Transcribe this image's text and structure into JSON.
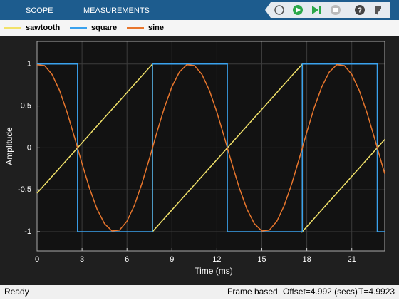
{
  "toolbar": {
    "tabs": [
      "SCOPE",
      "MEASUREMENTS"
    ]
  },
  "status": {
    "left": "Ready",
    "mode": "Frame based",
    "offset": "Offset=4.992 (secs)",
    "time": "T=4.9923"
  },
  "chart_data": {
    "type": "line",
    "xlabel": "Time (ms)",
    "ylabel": "Amplitude",
    "xlim": [
      0,
      23.2
    ],
    "xticks": [
      0,
      3,
      6,
      9,
      12,
      15,
      18,
      21
    ],
    "ylim": [
      -1.23,
      1.27
    ],
    "yticks": [
      -1,
      -0.5,
      0,
      0.5,
      1
    ],
    "grid": true,
    "series": [
      {
        "name": "sawtooth",
        "color": "#f2e26a",
        "x": [
          0,
          7.7,
          7.7,
          17.7,
          17.7,
          23.2
        ],
        "values": [
          -0.54,
          1,
          -1,
          1,
          -1,
          0.1
        ]
      },
      {
        "name": "square",
        "color": "#3aa2ee",
        "x": [
          0,
          2.7,
          2.7,
          7.7,
          7.7,
          12.7,
          12.7,
          17.7,
          17.7,
          22.7,
          22.7,
          23.2
        ],
        "values": [
          1,
          1,
          -1,
          -1,
          1,
          1,
          -1,
          -1,
          1,
          1,
          -1,
          -1
        ]
      },
      {
        "name": "sine",
        "color": "#e8762d",
        "x": [
          0,
          0.5,
          1,
          1.5,
          2,
          2.5,
          3,
          3.5,
          4,
          4.5,
          5,
          5.5,
          6,
          6.5,
          7,
          7.5,
          8,
          8.5,
          9,
          9.5,
          10,
          10.5,
          11,
          11.5,
          12,
          12.5,
          13,
          13.5,
          14,
          14.5,
          15,
          15.5,
          16,
          16.5,
          17,
          17.5,
          18,
          18.5,
          19,
          19.5,
          20,
          20.5,
          21,
          21.5,
          22,
          22.5,
          23,
          23.2
        ],
        "values": [
          0.992,
          0.982,
          0.876,
          0.685,
          0.426,
          0.125,
          -0.187,
          -0.482,
          -0.729,
          -0.905,
          -0.992,
          -0.982,
          -0.876,
          -0.685,
          -0.426,
          -0.125,
          0.187,
          0.482,
          0.729,
          0.905,
          0.992,
          0.982,
          0.876,
          0.685,
          0.426,
          0.125,
          -0.187,
          -0.482,
          -0.729,
          -0.905,
          -0.992,
          -0.982,
          -0.876,
          -0.685,
          -0.426,
          -0.125,
          0.187,
          0.482,
          0.729,
          0.905,
          0.992,
          0.982,
          0.876,
          0.685,
          0.426,
          0.125,
          -0.187,
          -0.309
        ]
      }
    ]
  }
}
